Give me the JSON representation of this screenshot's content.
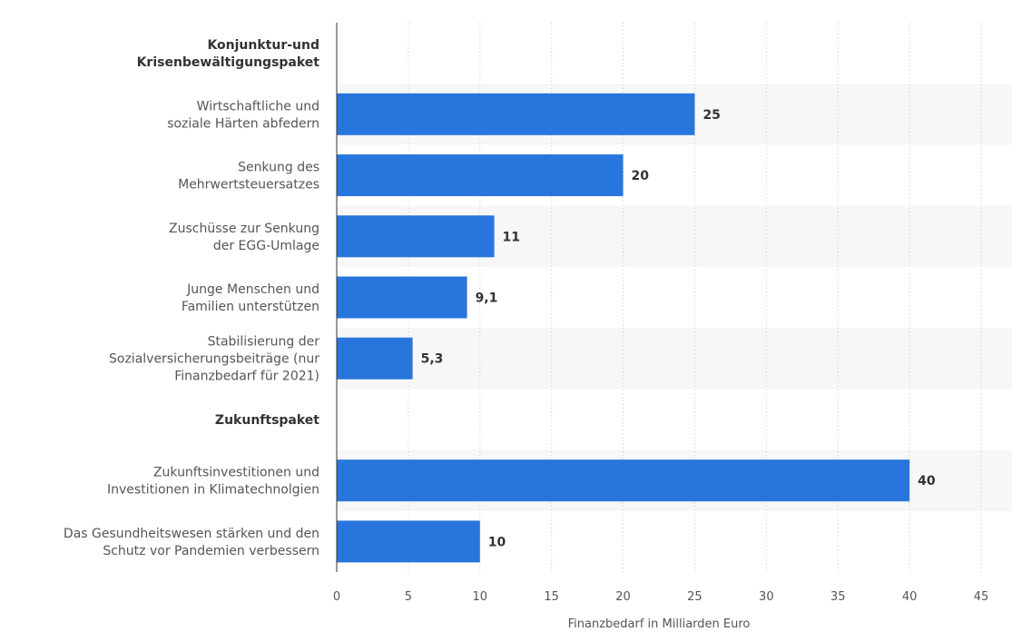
{
  "chart_data": {
    "type": "bar",
    "orientation": "horizontal",
    "title": "",
    "xlabel": "Finanzbedarf in Milliarden Euro",
    "ylabel": "",
    "xlim": [
      0,
      45
    ],
    "x_ticks": [
      "0",
      "5",
      "10",
      "15",
      "20",
      "25",
      "30",
      "35",
      "40",
      "45"
    ],
    "grid": true,
    "bar_color": "#2876dd",
    "band_color": "#f7f7f7",
    "rows": [
      {
        "label": [
          "Konjunktur-und",
          "Krisenbewältigungspaket"
        ],
        "group_header": true,
        "value": null,
        "value_label": ""
      },
      {
        "label": [
          "Wirtschaftliche und",
          "soziale Härten abfedern"
        ],
        "group_header": false,
        "value": 25,
        "value_label": "25"
      },
      {
        "label": [
          "Senkung des",
          "Mehrwertsteuersatzes"
        ],
        "group_header": false,
        "value": 20,
        "value_label": "20"
      },
      {
        "label": [
          "Zuschüsse zur Senkung",
          "der EGG-Umlage"
        ],
        "group_header": false,
        "value": 11,
        "value_label": "11"
      },
      {
        "label": [
          "Junge Menschen und",
          "Familien unterstützen"
        ],
        "group_header": false,
        "value": 9.1,
        "value_label": "9,1"
      },
      {
        "label": [
          "Stabilisierung der",
          "Sozialversicherungsbeiträge (nur",
          "Finanzbedarf für 2021)"
        ],
        "group_header": false,
        "value": 5.3,
        "value_label": "5,3"
      },
      {
        "label": [
          "Zukunftspaket"
        ],
        "group_header": true,
        "value": null,
        "value_label": ""
      },
      {
        "label": [
          "Zukunftsinvestitionen und",
          "Investitionen in Klimatechnolgien"
        ],
        "group_header": false,
        "value": 40,
        "value_label": "40"
      },
      {
        "label": [
          "Das Gesundheitswesen stärken und den",
          "Schutz vor Pandemien verbessern"
        ],
        "group_header": false,
        "value": 10,
        "value_label": "10"
      }
    ]
  }
}
